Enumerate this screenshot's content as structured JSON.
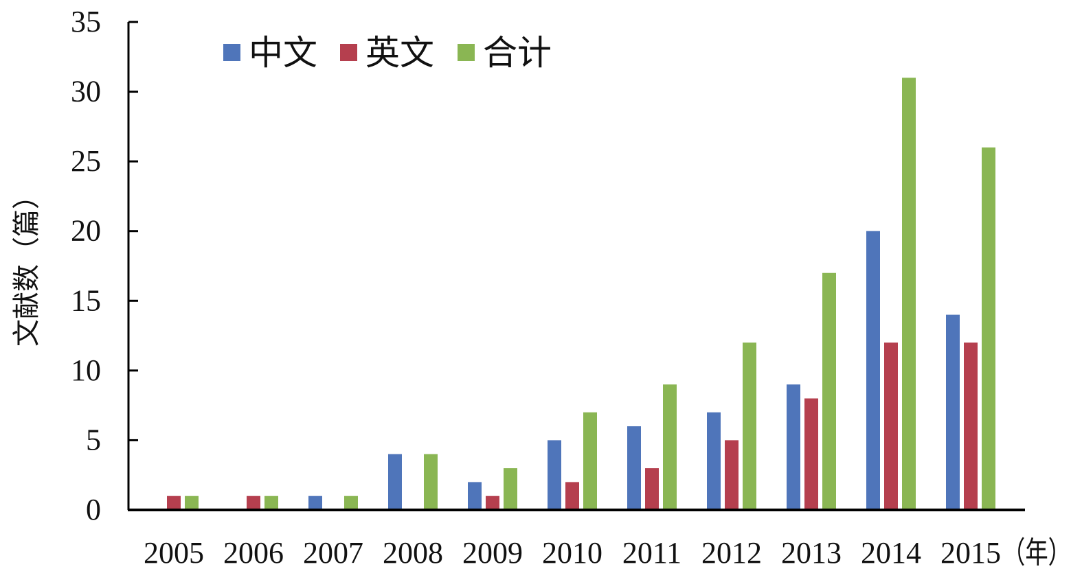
{
  "chart_data": {
    "type": "bar",
    "title": "",
    "xlabel": "",
    "x_unit": "（年）",
    "ylabel": "文献数（篇）",
    "ylim": [
      0,
      35
    ],
    "y_ticks": [
      0,
      5,
      10,
      15,
      20,
      25,
      30,
      35
    ],
    "grid": false,
    "legend_position": "top-left",
    "categories": [
      "2005",
      "2006",
      "2007",
      "2008",
      "2009",
      "2010",
      "2011",
      "2012",
      "2013",
      "2014",
      "2015"
    ],
    "series": [
      {
        "name": "中文",
        "color": "#4F75BA",
        "values": [
          0,
          0,
          1,
          4,
          2,
          5,
          6,
          7,
          9,
          20,
          14
        ]
      },
      {
        "name": "英文",
        "color": "#B53F4E",
        "values": [
          1,
          1,
          0,
          0,
          1,
          2,
          3,
          5,
          8,
          12,
          12
        ]
      },
      {
        "name": "合计",
        "color": "#8AB653",
        "values": [
          1,
          1,
          1,
          4,
          3,
          7,
          9,
          12,
          17,
          31,
          26
        ]
      }
    ]
  }
}
